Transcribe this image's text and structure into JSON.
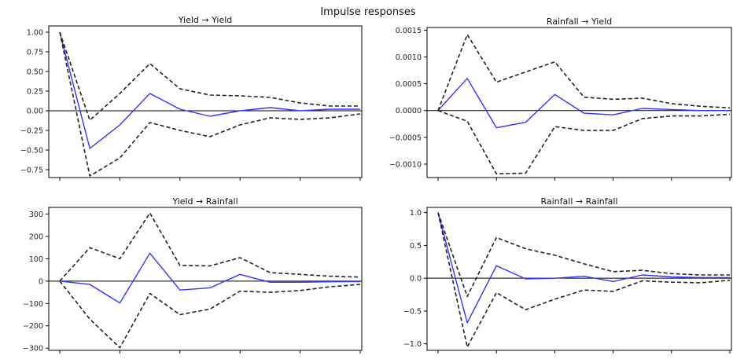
{
  "page": {
    "caption": "",
    "suptitle": "Impulse responses"
  },
  "colors": {
    "response": "#3333ff",
    "band": "#222222",
    "axis": "#000000",
    "zero_line": "#000000"
  },
  "chart_data": [
    {
      "type": "line",
      "title": "Yield → Yield",
      "x": [
        0,
        1,
        2,
        3,
        4,
        5,
        6,
        7,
        8,
        9,
        10
      ],
      "xlim": [
        0,
        10
      ],
      "ylim": [
        -0.85,
        1.08
      ],
      "yticks": [
        1.0,
        0.75,
        0.5,
        0.25,
        0.0,
        -0.25,
        -0.5,
        -0.75
      ],
      "ytick_labels": [
        "1.00",
        "0.75",
        "0.50",
        "0.25",
        "0.00",
        "−0.25",
        "−0.50",
        "−0.75"
      ],
      "xticks": [
        0,
        2,
        4,
        6,
        8,
        10
      ],
      "series": [
        {
          "role": "response",
          "values": [
            1.0,
            -0.48,
            -0.18,
            0.22,
            0.02,
            -0.07,
            0.0,
            0.04,
            0.0,
            0.02,
            0.02
          ]
        },
        {
          "role": "upper",
          "values": [
            1.0,
            -0.12,
            0.22,
            0.6,
            0.28,
            0.2,
            0.19,
            0.17,
            0.1,
            0.06,
            0.06
          ]
        },
        {
          "role": "lower",
          "values": [
            1.0,
            -0.83,
            -0.6,
            -0.15,
            -0.25,
            -0.33,
            -0.18,
            -0.09,
            -0.11,
            -0.09,
            -0.04
          ]
        }
      ]
    },
    {
      "type": "line",
      "title": "Rainfall → Yield",
      "x": [
        0,
        1,
        2,
        3,
        4,
        5,
        6,
        7,
        8,
        9,
        10
      ],
      "xlim": [
        0,
        10
      ],
      "ylim": [
        -0.00125,
        0.00155
      ],
      "yticks": [
        0.0015,
        0.001,
        0.0005,
        0.0,
        -0.0005,
        -0.001
      ],
      "ytick_labels": [
        "0.0015",
        "0.0010",
        "0.0005",
        "0.0000",
        "−0.0005",
        "−0.0010"
      ],
      "xticks": [
        0,
        2,
        4,
        6,
        8,
        10
      ],
      "series": [
        {
          "role": "response",
          "values": [
            0.0,
            0.0006,
            -0.00032,
            -0.00022,
            0.0003,
            -5e-05,
            -8e-05,
            4e-05,
            2e-05,
            0.0,
            0.0
          ]
        },
        {
          "role": "upper",
          "values": [
            0.0,
            0.00142,
            0.00053,
            0.00072,
            0.00091,
            0.00025,
            0.00021,
            0.00023,
            0.00013,
            8e-05,
            5e-05
          ]
        },
        {
          "role": "lower",
          "values": [
            0.0,
            -0.0002,
            -0.00118,
            -0.00117,
            -0.0003,
            -0.00037,
            -0.00037,
            -0.00015,
            -0.0001,
            -0.0001,
            -7e-05
          ]
        }
      ]
    },
    {
      "type": "line",
      "title": "Yield → Rainfall",
      "x": [
        0,
        1,
        2,
        3,
        4,
        5,
        6,
        7,
        8,
        9,
        10
      ],
      "xlim": [
        0,
        10
      ],
      "ylim": [
        -310,
        330
      ],
      "yticks": [
        300,
        200,
        100,
        0,
        -100,
        -200,
        -300
      ],
      "ytick_labels": [
        "300",
        "200",
        "100",
        "0",
        "−100",
        "−200",
        "−300"
      ],
      "xticks": [
        0,
        2,
        4,
        6,
        8,
        10
      ],
      "series": [
        {
          "role": "response",
          "values": [
            0,
            -15,
            -98,
            125,
            -40,
            -30,
            30,
            -5,
            -5,
            -3,
            -2
          ]
        },
        {
          "role": "upper",
          "values": [
            0,
            150,
            100,
            305,
            70,
            68,
            105,
            38,
            30,
            22,
            18
          ]
        },
        {
          "role": "lower",
          "values": [
            0,
            -170,
            -298,
            -55,
            -150,
            -125,
            -45,
            -50,
            -42,
            -25,
            -15
          ]
        }
      ]
    },
    {
      "type": "line",
      "title": "Rainfall → Rainfall",
      "x": [
        0,
        1,
        2,
        3,
        4,
        5,
        6,
        7,
        8,
        9,
        10
      ],
      "xlim": [
        0,
        10
      ],
      "ylim": [
        -1.1,
        1.08
      ],
      "yticks": [
        1.0,
        0.5,
        0.0,
        -0.5,
        -1.0
      ],
      "ytick_labels": [
        "1.0",
        "0.5",
        "0.0",
        "−0.5",
        "−1.0"
      ],
      "xticks": [
        0,
        2,
        4,
        6,
        8,
        10
      ],
      "series": [
        {
          "role": "response",
          "values": [
            1.0,
            -0.68,
            0.19,
            -0.01,
            0.0,
            0.03,
            -0.05,
            0.05,
            0.02,
            0.01,
            0.01
          ]
        },
        {
          "role": "upper",
          "values": [
            1.0,
            -0.28,
            0.62,
            0.45,
            0.35,
            0.22,
            0.1,
            0.12,
            0.07,
            0.05,
            0.05
          ]
        },
        {
          "role": "lower",
          "values": [
            1.0,
            -1.05,
            -0.22,
            -0.48,
            -0.32,
            -0.18,
            -0.2,
            -0.04,
            -0.06,
            -0.07,
            -0.03
          ]
        }
      ]
    }
  ]
}
